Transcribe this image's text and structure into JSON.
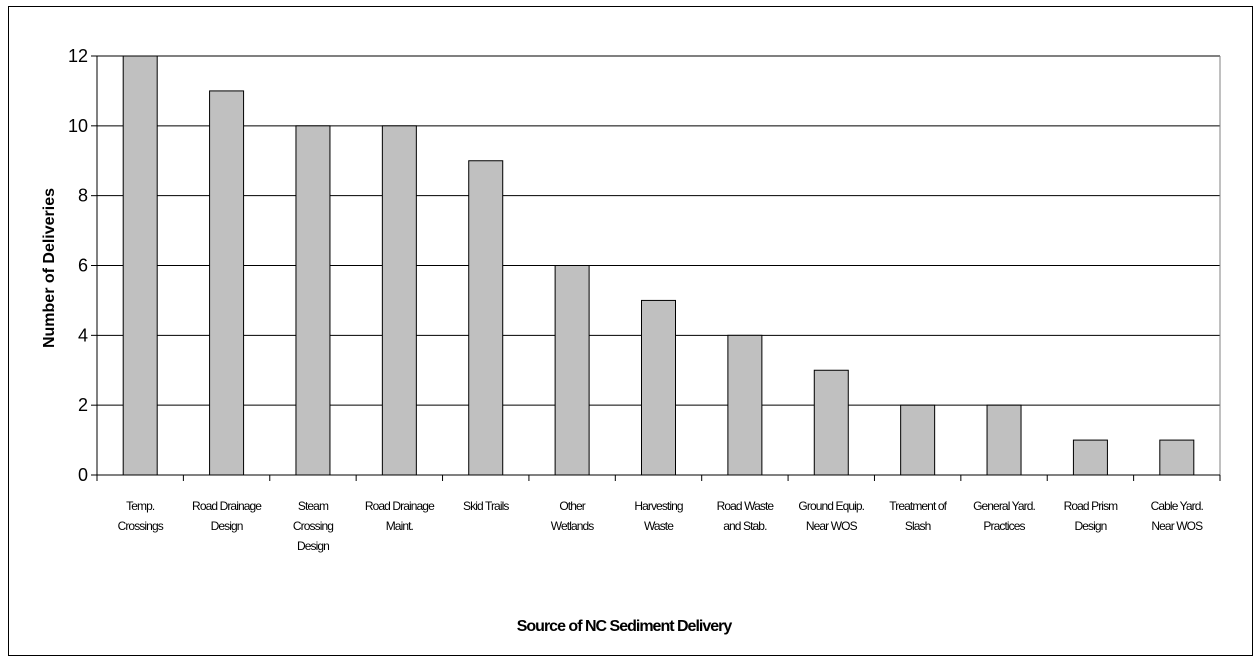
{
  "chart_data": {
    "type": "bar",
    "title": "",
    "xlabel": "Source of NC Sediment Delivery",
    "ylabel": "Number of Deliveries",
    "ylim": [
      0,
      12
    ],
    "yticks": [
      0,
      2,
      4,
      6,
      8,
      10,
      12
    ],
    "grid": true,
    "legend": "none",
    "bar_color": "#c0c0c0",
    "categories": [
      [
        "Temp.",
        "Crossings"
      ],
      [
        "Road Drainage",
        "Design"
      ],
      [
        "Steam",
        "Crossing",
        "Design"
      ],
      [
        "Road Drainage",
        "Maint."
      ],
      [
        "Skid Trails"
      ],
      [
        "Other",
        "Wetlands"
      ],
      [
        "Harvesting",
        "Waste"
      ],
      [
        "Road Waste",
        "and Stab."
      ],
      [
        "Ground Equip.",
        "Near WOS"
      ],
      [
        "Treatment of",
        "Slash"
      ],
      [
        "General Yard.",
        "Practices"
      ],
      [
        "Road Prism",
        "Design"
      ],
      [
        "Cable Yard.",
        "Near WOS"
      ]
    ],
    "values": [
      12,
      11,
      10,
      10,
      9,
      6,
      5,
      4,
      3,
      2,
      2,
      1,
      1
    ]
  }
}
